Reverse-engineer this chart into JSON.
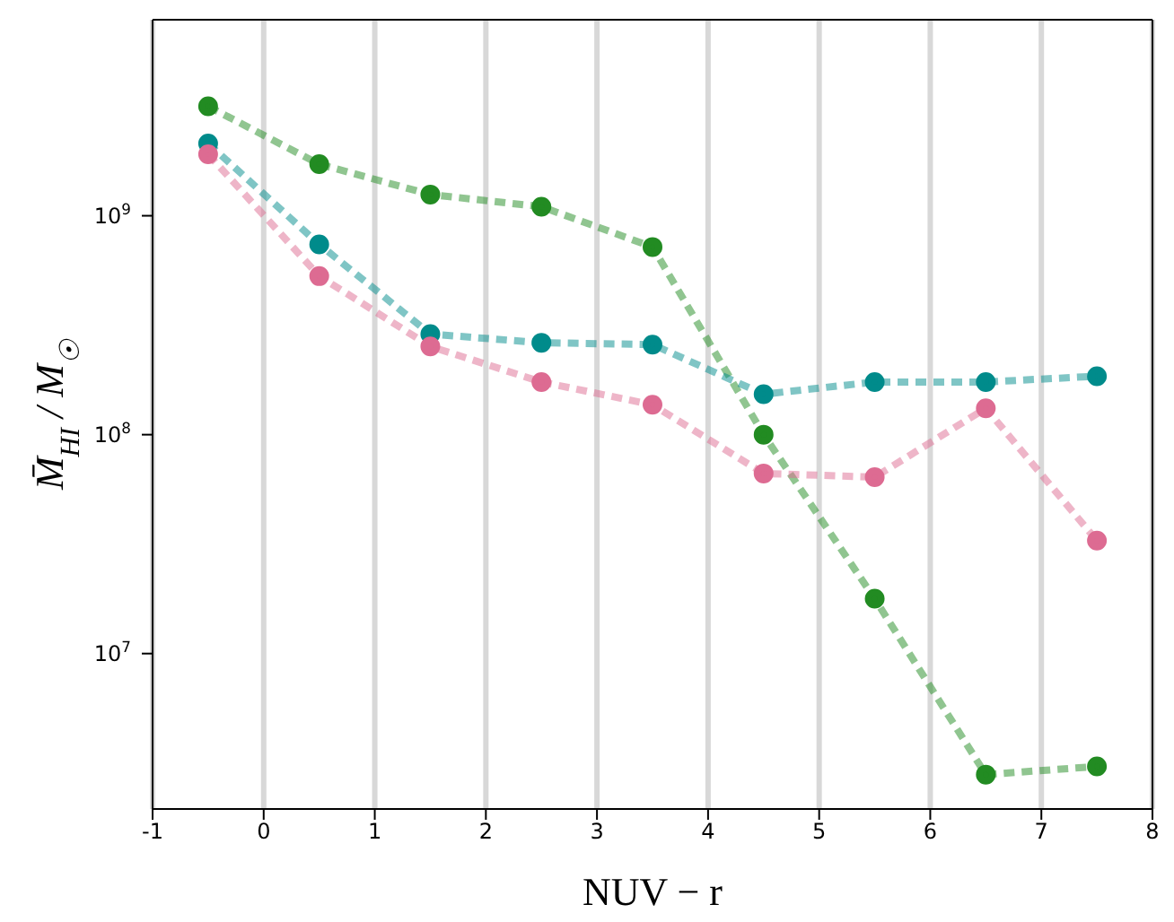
{
  "chart_data": {
    "type": "line",
    "xlabel": "NUV − r",
    "ylabel": "M̄$_{HI}$ / M$_{☉}$",
    "x": [
      -0.5,
      0.5,
      1.5,
      2.5,
      3.5,
      4.5,
      5.5,
      6.5,
      7.5
    ],
    "series": [
      {
        "color": "#228b22",
        "values": [
          3160000000.0,
          1720000000.0,
          1250000000.0,
          1100000000.0,
          720000000.0,
          100000000.0,
          17800000.0,
          2800000.0,
          3050000.0
        ]
      },
      {
        "color": "#008b8b",
        "values": [
          2140000000.0,
          740000000.0,
          288000000.0,
          263000000.0,
          258000000.0,
          153000000.0,
          174000000.0,
          174000000.0,
          185000000.0
        ]
      },
      {
        "color": "#dd6b92",
        "values": [
          1910000000.0,
          530000000.0,
          253000000.0,
          174000000.0,
          137000000.0,
          66500000.0,
          64000000.0,
          132000000.0,
          32800000.0
        ]
      }
    ],
    "xlim": [
      -1,
      8
    ],
    "xticks": [
      -1,
      0,
      1,
      2,
      3,
      4,
      5,
      6,
      7,
      8
    ],
    "ylim": [
      1950000.0,
      7860000000.0
    ],
    "yticks": [
      {
        "value": 10000000.0,
        "label": "10$^{7}$"
      },
      {
        "value": 100000000.0,
        "label": "10$^{8}$"
      },
      {
        "value": 1000000000.0,
        "label": "10$^{9}$"
      }
    ],
    "log": "y",
    "grid": "x",
    "marker": "circle",
    "line_style": "dashed"
  }
}
